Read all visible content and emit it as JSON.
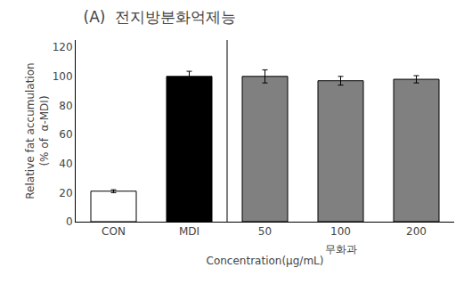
{
  "chart_data": {
    "type": "bar",
    "title": "(A)  전지방분화억제능",
    "categories": [
      "CON",
      "MDI",
      "50",
      "100",
      "200"
    ],
    "values": [
      21,
      100,
      100,
      97,
      98
    ],
    "errors": [
      1.0,
      3.5,
      4.5,
      3.0,
      2.5
    ],
    "colors": [
      "white",
      "black",
      "#808080",
      "#808080",
      "#808080"
    ],
    "ylabel": "Relative fat accumulation\n(% of  α-MDI)",
    "xlabel": "Concentration(μg/mL)",
    "annotations": [
      {
        "text": "무화과",
        "category": "100"
      }
    ],
    "ylim": [
      0,
      125
    ],
    "yticks": [
      0,
      20,
      40,
      60,
      80,
      100,
      120
    ],
    "grid": false
  }
}
